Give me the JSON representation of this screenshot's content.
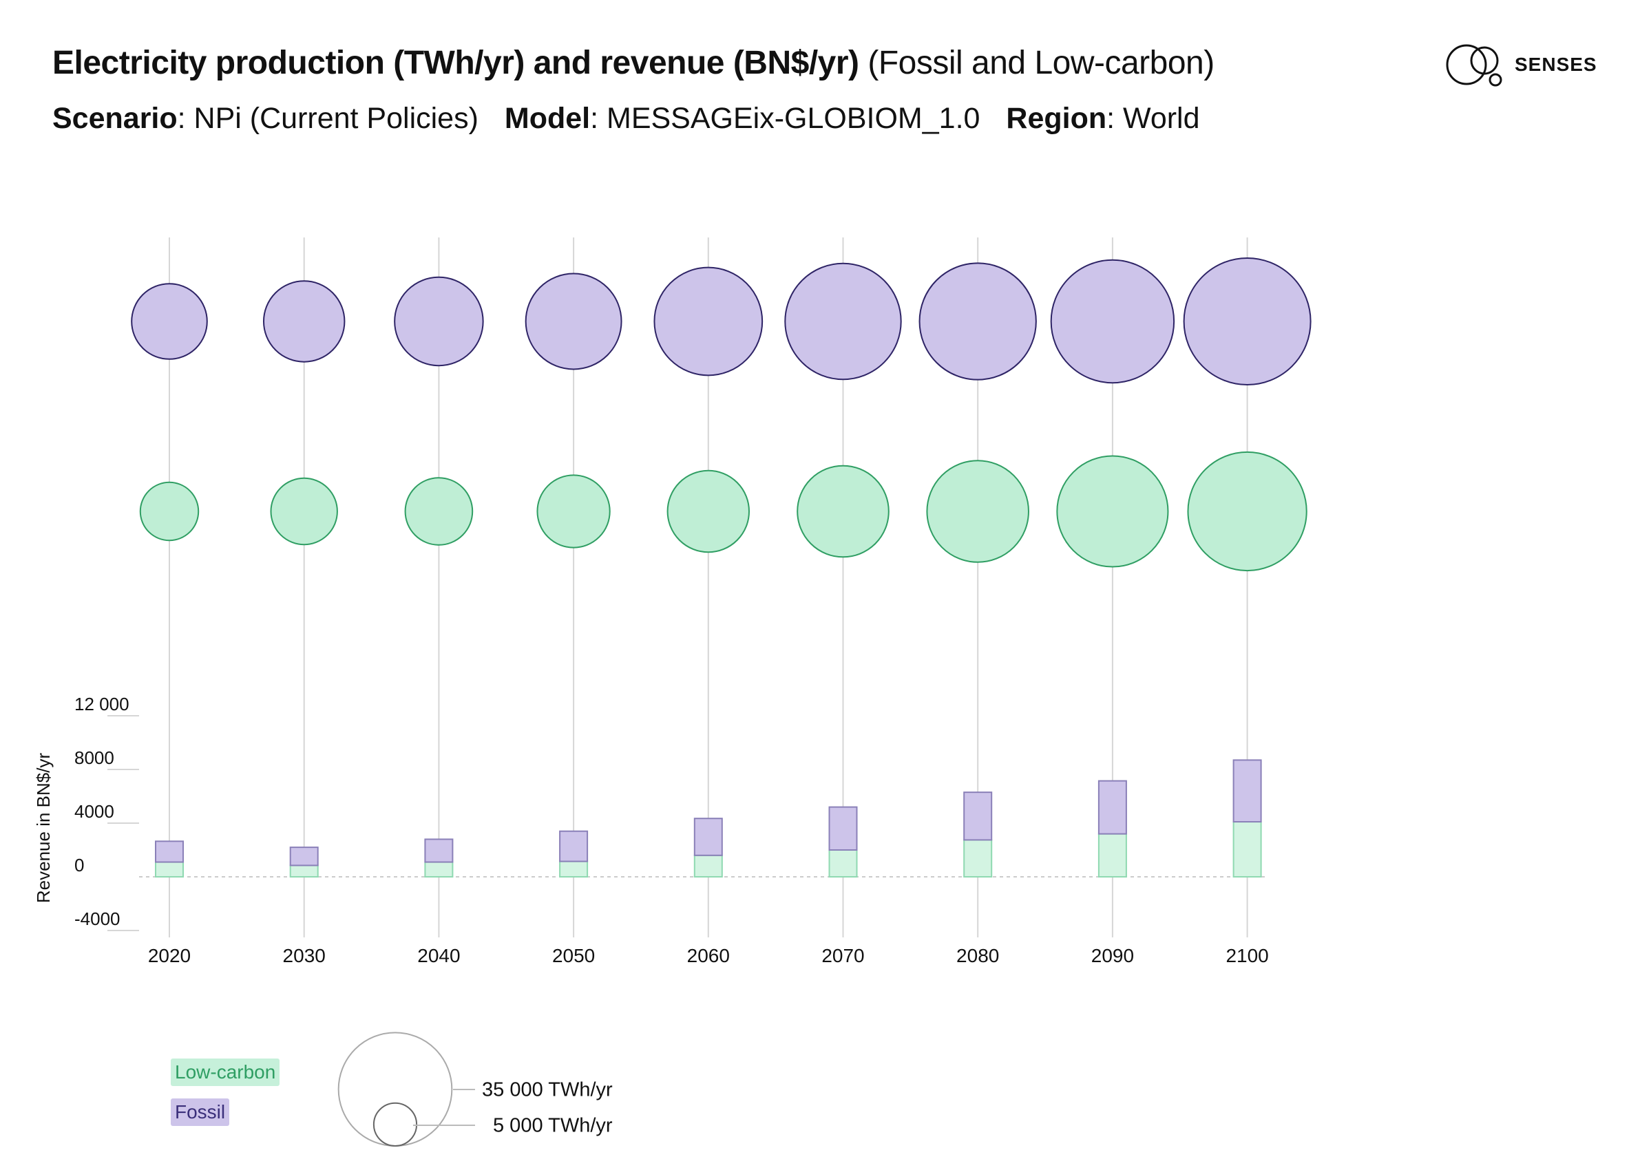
{
  "header": {
    "title_bold": "Electricity production (TWh/yr) and revenue (BN$/yr)",
    "title_light": "(Fossil and Low-carbon)",
    "scenario_key": "Scenario",
    "scenario_val": "NPi (Current Policies)",
    "model_key": "Model",
    "model_val": "MESSAGEix-GLOBIOM_1.0",
    "region_key": "Region",
    "region_val": "World"
  },
  "brand": {
    "logo_text": "SENSES"
  },
  "colors": {
    "fossil_fill": "#cdc4ea",
    "fossil_stroke": "#2e2466",
    "low_fill": "#bfeed5",
    "low_stroke": "#2f9e63",
    "grid": "#d6d6d6",
    "text": "#111111"
  },
  "chart_data": {
    "type": "bubble+stacked-bar",
    "x": [
      "2020",
      "2030",
      "2040",
      "2050",
      "2060",
      "2070",
      "2080",
      "2090",
      "2100"
    ],
    "production_twh": {
      "Fossil": [
        15500,
        17800,
        21300,
        24900,
        31700,
        36600,
        37000,
        41100,
        43700
      ],
      "Low-carbon": [
        9200,
        12000,
        12300,
        14300,
        18100,
        22700,
        28100,
        33500,
        38300
      ]
    },
    "revenue": {
      "ylabel": "Revenue in BN$/yr",
      "ylim": [
        -4000,
        12000
      ],
      "ticks": [
        "12 000",
        "8000",
        "4000",
        "0",
        "-4000"
      ],
      "tick_values": [
        12000,
        8000,
        4000,
        0,
        -4000
      ],
      "Low-carbon": [
        1100,
        850,
        1100,
        1150,
        1600,
        2000,
        2750,
        3200,
        4100
      ],
      "Fossil": [
        1550,
        1350,
        1700,
        2250,
        2750,
        3200,
        3550,
        3950,
        4600
      ]
    },
    "legend": {
      "low_label": "Low-carbon",
      "fossil_label": "Fossil",
      "size_large_label": "35 000 TWh/yr",
      "size_small_label": "5 000 TWh/yr",
      "size_large": 35000,
      "size_small": 5000
    }
  }
}
